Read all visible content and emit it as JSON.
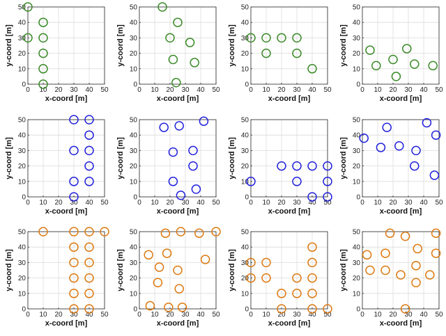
{
  "chart_data": [
    {
      "type": "scatter",
      "xlabel": "x-coord [m]",
      "ylabel": "y-coord [m]",
      "xlim": [
        0,
        50
      ],
      "ylim": [
        0,
        50
      ],
      "xticks": [
        0,
        10,
        20,
        30,
        40,
        50
      ],
      "yticks": [
        0,
        10,
        20,
        30,
        40,
        50
      ],
      "grid": true,
      "color": "#3a8a28",
      "x": [
        0,
        0,
        10,
        10,
        10,
        10,
        10
      ],
      "y": [
        50,
        30,
        40,
        30,
        20,
        10,
        0
      ]
    },
    {
      "type": "scatter",
      "xlabel": "x-coord [m]",
      "ylabel": "y-coord [m]",
      "xlim": [
        0,
        50
      ],
      "ylim": [
        0,
        50
      ],
      "xticks": [
        0,
        10,
        20,
        30,
        40,
        50
      ],
      "yticks": [
        0,
        10,
        20,
        30,
        40,
        50
      ],
      "grid": true,
      "color": "#3a8a28",
      "x": [
        15,
        25,
        20,
        33,
        22,
        36,
        24
      ],
      "y": [
        50,
        40,
        30,
        27,
        16,
        14,
        1
      ]
    },
    {
      "type": "scatter",
      "xlabel": "x-coord [m]",
      "ylabel": "y-coord [m]",
      "xlim": [
        0,
        50
      ],
      "ylim": [
        0,
        50
      ],
      "xticks": [
        0,
        10,
        20,
        30,
        40,
        50
      ],
      "yticks": [
        0,
        10,
        20,
        30,
        40,
        50
      ],
      "grid": true,
      "color": "#3a8a28",
      "x": [
        0,
        10,
        20,
        30,
        10,
        30,
        40
      ],
      "y": [
        30,
        30,
        30,
        30,
        20,
        20,
        10
      ]
    },
    {
      "type": "scatter",
      "xlabel": "x-coord [m]",
      "ylabel": "y-coord [m]",
      "xlim": [
        0,
        50
      ],
      "ylim": [
        0,
        50
      ],
      "xticks": [
        0,
        10,
        20,
        30,
        40,
        50
      ],
      "yticks": [
        0,
        10,
        20,
        30,
        40,
        50
      ],
      "grid": true,
      "color": "#3a8a28",
      "x": [
        5,
        29,
        9,
        20,
        34,
        46,
        22
      ],
      "y": [
        22,
        23,
        12,
        16,
        13,
        12,
        5
      ]
    },
    {
      "type": "scatter",
      "xlabel": "x-coord [m]",
      "ylabel": "y-coord [m]",
      "xlim": [
        0,
        50
      ],
      "ylim": [
        0,
        50
      ],
      "xticks": [
        0,
        10,
        20,
        30,
        40,
        50
      ],
      "yticks": [
        0,
        10,
        20,
        30,
        40,
        50
      ],
      "grid": true,
      "color": "#2222dd",
      "x": [
        30,
        40,
        40,
        30,
        40,
        40,
        30,
        40,
        30
      ],
      "y": [
        50,
        50,
        40,
        30,
        30,
        20,
        10,
        10,
        0
      ]
    },
    {
      "type": "scatter",
      "xlabel": "x-coord [m]",
      "ylabel": "y-coord [m]",
      "xlim": [
        0,
        50
      ],
      "ylim": [
        0,
        50
      ],
      "xticks": [
        0,
        10,
        20,
        30,
        40,
        50
      ],
      "yticks": [
        0,
        10,
        20,
        30,
        40,
        50
      ],
      "grid": true,
      "color": "#2222dd",
      "x": [
        16,
        26,
        42,
        22,
        35,
        35,
        22,
        37,
        27
      ],
      "y": [
        45,
        46,
        49,
        29,
        30,
        20,
        10,
        5,
        1
      ]
    },
    {
      "type": "scatter",
      "xlabel": "x-coord [m]",
      "ylabel": "y-coord [m]",
      "xlim": [
        0,
        50
      ],
      "ylim": [
        0,
        50
      ],
      "xticks": [
        0,
        10,
        20,
        30,
        40,
        50
      ],
      "yticks": [
        0,
        10,
        20,
        30,
        40,
        50
      ],
      "grid": true,
      "color": "#2222dd",
      "x": [
        20,
        30,
        40,
        50,
        0,
        30,
        50,
        40,
        50
      ],
      "y": [
        20,
        20,
        20,
        20,
        10,
        10,
        10,
        0,
        0
      ]
    },
    {
      "type": "scatter",
      "xlabel": "x-coord [m]",
      "ylabel": "y-coord [m]",
      "xlim": [
        0,
        50
      ],
      "ylim": [
        0,
        50
      ],
      "xticks": [
        0,
        10,
        20,
        30,
        40,
        50
      ],
      "yticks": [
        0,
        10,
        20,
        30,
        40,
        50
      ],
      "grid": true,
      "color": "#2222dd",
      "x": [
        42,
        16,
        1,
        12,
        24,
        48,
        35,
        34,
        47
      ],
      "y": [
        48,
        45,
        38,
        32,
        33,
        40,
        30,
        20,
        14
      ]
    },
    {
      "type": "scatter",
      "xlabel": "x-coord [m]",
      "ylabel": "y-coord [m]",
      "xlim": [
        0,
        50
      ],
      "ylim": [
        0,
        50
      ],
      "xticks": [
        0,
        10,
        20,
        30,
        40,
        50
      ],
      "yticks": [
        0,
        10,
        20,
        30,
        40,
        50
      ],
      "grid": true,
      "color": "#dd7a12",
      "x": [
        10,
        30,
        40,
        50,
        30,
        40,
        30,
        40,
        30,
        40,
        30,
        40,
        30,
        40
      ],
      "y": [
        50,
        50,
        50,
        50,
        40,
        40,
        30,
        30,
        20,
        20,
        10,
        10,
        0,
        0
      ]
    },
    {
      "type": "scatter",
      "xlabel": "x-coord [m]",
      "ylabel": "y-coord [m]",
      "xlim": [
        0,
        50
      ],
      "ylim": [
        0,
        50
      ],
      "xticks": [
        0,
        10,
        20,
        30,
        40,
        50
      ],
      "yticks": [
        0,
        10,
        20,
        30,
        40,
        50
      ],
      "grid": true,
      "color": "#dd7a12",
      "x": [
        17,
        27,
        39,
        50,
        6,
        18,
        43,
        13,
        25,
        12,
        26,
        7,
        19,
        28
      ],
      "y": [
        49,
        50,
        49,
        50,
        35,
        36,
        32,
        27,
        25,
        17,
        13,
        2,
        1,
        1
      ]
    },
    {
      "type": "scatter",
      "xlabel": "x-coord [m]",
      "ylabel": "y-coord [m]",
      "xlim": [
        0,
        50
      ],
      "ylim": [
        0,
        50
      ],
      "xticks": [
        0,
        10,
        20,
        30,
        40,
        50
      ],
      "yticks": [
        0,
        10,
        20,
        30,
        40,
        50
      ],
      "grid": true,
      "color": "#dd7a12",
      "x": [
        40,
        0,
        10,
        40,
        0,
        10,
        30,
        40,
        20,
        30,
        40,
        20,
        40,
        50
      ],
      "y": [
        40,
        30,
        30,
        30,
        20,
        20,
        20,
        20,
        10,
        10,
        10,
        0,
        0,
        0
      ]
    },
    {
      "type": "scatter",
      "xlabel": "x-coord [m]",
      "ylabel": "y-coord [m]",
      "xlim": [
        0,
        50
      ],
      "ylim": [
        0,
        50
      ],
      "xticks": [
        0,
        10,
        20,
        30,
        40,
        50
      ],
      "yticks": [
        0,
        10,
        20,
        30,
        40,
        50
      ],
      "grid": true,
      "color": "#dd7a12",
      "x": [
        18,
        28,
        48,
        3,
        36,
        15,
        5,
        35,
        48,
        15,
        25,
        44,
        35,
        28
      ],
      "y": [
        49,
        47,
        49,
        35,
        39,
        36,
        25,
        28,
        36,
        25,
        22,
        22,
        17,
        0
      ]
    }
  ]
}
